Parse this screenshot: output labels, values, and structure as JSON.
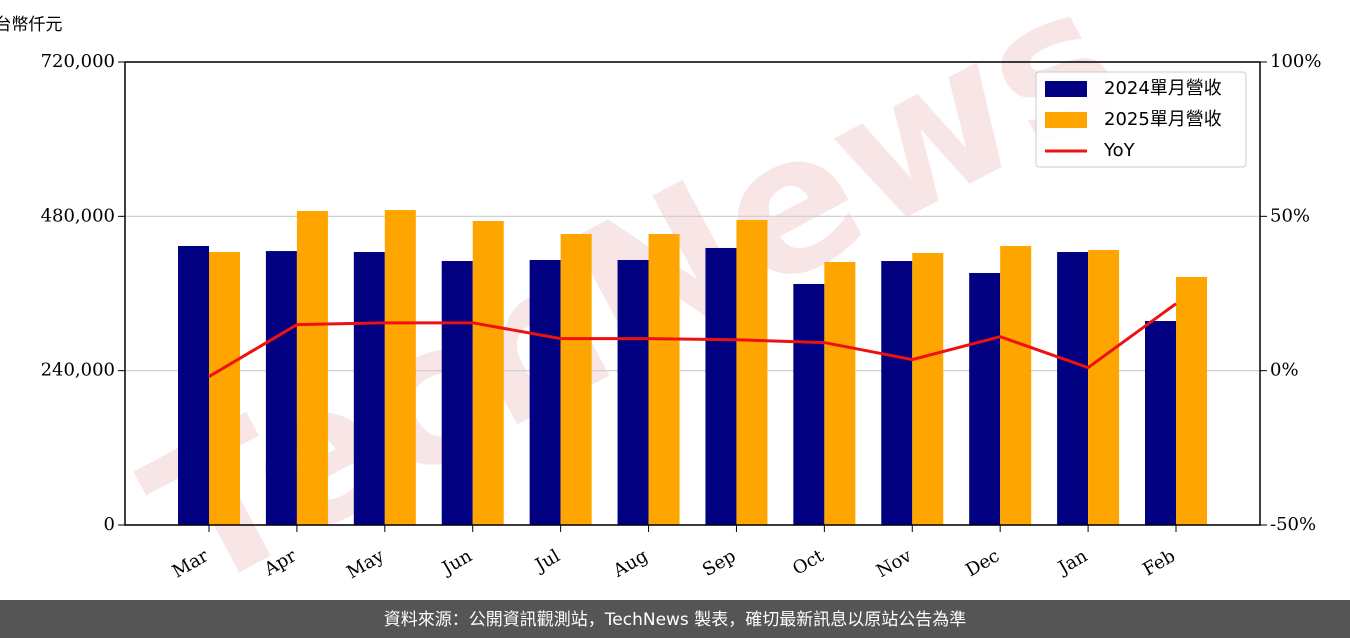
{
  "chart_data": {
    "type": "bar_line",
    "unit_label": "新台幣仟元",
    "footer": "資料來源：公開資訊觀測站，TechNews 製表，確切最新訊息以原站公告為準",
    "watermark": "TechNews",
    "categories": [
      "Mar",
      "Apr",
      "May",
      "Jun",
      "Jul",
      "Aug",
      "Sep",
      "Oct",
      "Nov",
      "Dec",
      "Jan",
      "Feb"
    ],
    "series": [
      {
        "name": "2024單月營收",
        "color": "#000080",
        "values": [
          433900,
          426000,
          424500,
          410500,
          412100,
          412100,
          430800,
          374800,
          410500,
          391900,
          424500,
          317200
        ]
      },
      {
        "name": "2025單月營收",
        "color": "#ffa500",
        "values": [
          424500,
          488300,
          489800,
          472700,
          452500,
          452500,
          474300,
          409000,
          423000,
          433900,
          427600,
          385700
        ]
      },
      {
        "name": "YoY",
        "color": "#ee1111",
        "axis": "y2",
        "values": [
          -1.9,
          14.9,
          15.5,
          15.5,
          10.4,
          10.4,
          10.0,
          9.1,
          3.6,
          11.0,
          1.0,
          21.7
        ]
      }
    ],
    "ylim": [
      0,
      720000
    ],
    "yticks": [
      0,
      {
        "value": 240000,
        "label": "240,000"
      },
      {
        "value": 480000,
        "label": "480,000"
      },
      {
        "value": 720000,
        "label": "720,000"
      }
    ],
    "y2lim": [
      -50,
      100
    ],
    "y2ticks": [
      {
        "value": -50,
        "label": "-50%"
      },
      {
        "value": 0,
        "label": "0%"
      },
      {
        "value": 50,
        "label": "50%"
      },
      {
        "value": 100,
        "label": "100%"
      }
    ],
    "grid": true,
    "legend": "upper right"
  }
}
